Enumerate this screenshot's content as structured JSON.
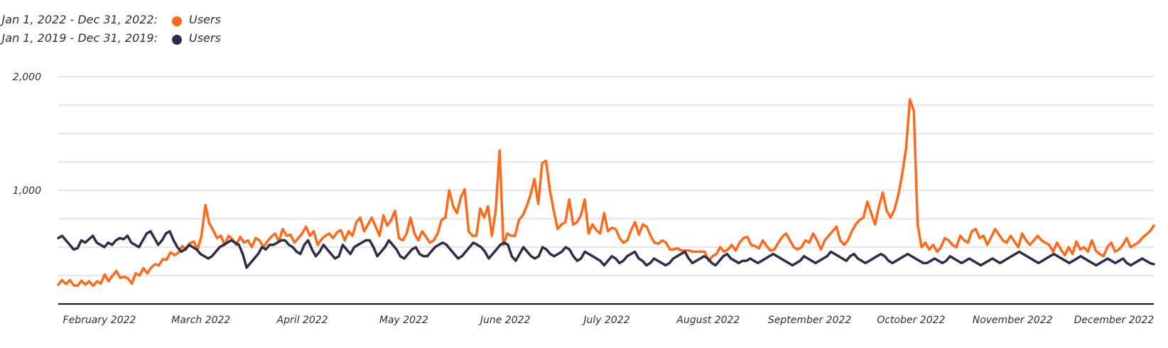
{
  "legend": {
    "items": [
      {
        "range": "Jan 1, 2022 - Dec 31, 2022:",
        "name": "Users",
        "color": "#ff6a1a"
      },
      {
        "range": "Jan 1, 2019 - Dec 31, 2019:",
        "name": "Users",
        "color": "#2b2d4b"
      }
    ]
  },
  "chart_data": {
    "type": "line",
    "grid": true,
    "legend_position": "top-left",
    "ylim": [
      0,
      2000
    ],
    "y_ticks": [
      {
        "value": 2000,
        "label": "2,000"
      },
      {
        "value": 1000,
        "label": "1,000"
      }
    ],
    "x_ticks": [
      "February 2022",
      "March 2022",
      "April 2022",
      "May 2022",
      "June 2022",
      "July 2022",
      "August 2022",
      "September 2022",
      "October 2022",
      "November 2022",
      "December 2022"
    ],
    "series": [
      {
        "name": "Users",
        "period": "Jan 1, 2022 - Dec 31, 2022",
        "color": "#ff6a1a",
        "values": [
          170,
          210,
          175,
          210,
          165,
          160,
          205,
          170,
          200,
          160,
          200,
          180,
          260,
          200,
          250,
          290,
          230,
          240,
          225,
          180,
          270,
          250,
          315,
          270,
          320,
          350,
          340,
          395,
          390,
          455,
          430,
          450,
          510,
          480,
          535,
          550,
          480,
          600,
          870,
          710,
          650,
          580,
          600,
          520,
          600,
          570,
          520,
          590,
          540,
          560,
          500,
          580,
          560,
          500,
          550,
          590,
          620,
          550,
          660,
          600,
          610,
          540,
          580,
          620,
          680,
          600,
          640,
          520,
          570,
          600,
          620,
          580,
          630,
          650,
          560,
          640,
          600,
          720,
          760,
          640,
          700,
          760,
          680,
          600,
          780,
          690,
          740,
          820,
          580,
          560,
          620,
          760,
          620,
          560,
          640,
          590,
          540,
          560,
          620,
          740,
          760,
          1000,
          860,
          800,
          940,
          1010,
          640,
          600,
          600,
          840,
          760,
          860,
          600,
          820,
          1350,
          520,
          620,
          600,
          600,
          740,
          780,
          860,
          960,
          1100,
          880,
          1240,
          1260,
          1000,
          820,
          660,
          700,
          720,
          920,
          700,
          720,
          780,
          920,
          620,
          700,
          650,
          620,
          800,
          640,
          670,
          660,
          580,
          540,
          560,
          650,
          720,
          610,
          700,
          680,
          600,
          540,
          530,
          560,
          540,
          480,
          480,
          490,
          470,
          470,
          470,
          460,
          460,
          460,
          460,
          380,
          420,
          440,
          500,
          460,
          480,
          520,
          470,
          540,
          580,
          590,
          520,
          510,
          490,
          560,
          510,
          470,
          480,
          540,
          590,
          620,
          560,
          500,
          480,
          500,
          560,
          540,
          620,
          560,
          480,
          560,
          600,
          640,
          680,
          560,
          520,
          560,
          640,
          700,
          740,
          760,
          900,
          800,
          700,
          860,
          980,
          820,
          760,
          830,
          960,
          1140,
          1370,
          1800,
          1700,
          700,
          500,
          540,
          480,
          520,
          460,
          500,
          580,
          560,
          520,
          500,
          600,
          560,
          540,
          640,
          660,
          580,
          600,
          520,
          590,
          660,
          610,
          560,
          540,
          600,
          550,
          500,
          620,
          560,
          520,
          560,
          600,
          560,
          540,
          520,
          460,
          540,
          480,
          430,
          500,
          440,
          550,
          480,
          500,
          460,
          560,
          470,
          440,
          420,
          500,
          540,
          460,
          480,
          520,
          580,
          500,
          520,
          540,
          580,
          610,
          640,
          690
        ]
      },
      {
        "name": "Users",
        "period": "Jan 1, 2019 - Dec 31, 2019",
        "color": "#2b2d4b",
        "values": [
          580,
          600,
          560,
          520,
          480,
          490,
          560,
          540,
          570,
          600,
          540,
          520,
          500,
          540,
          520,
          560,
          580,
          570,
          600,
          540,
          520,
          500,
          560,
          620,
          640,
          580,
          520,
          560,
          620,
          640,
          560,
          500,
          460,
          480,
          520,
          500,
          480,
          440,
          420,
          400,
          420,
          460,
          500,
          520,
          540,
          560,
          540,
          520,
          440,
          320,
          360,
          400,
          440,
          500,
          480,
          520,
          520,
          540,
          560,
          560,
          520,
          500,
          460,
          440,
          520,
          560,
          480,
          420,
          460,
          520,
          480,
          440,
          400,
          420,
          520,
          480,
          440,
          500,
          520,
          540,
          560,
          560,
          500,
          420,
          460,
          500,
          560,
          520,
          480,
          420,
          400,
          440,
          480,
          500,
          440,
          420,
          420,
          460,
          500,
          520,
          540,
          520,
          480,
          440,
          400,
          420,
          460,
          500,
          540,
          520,
          500,
          460,
          400,
          440,
          480,
          520,
          540,
          520,
          420,
          380,
          440,
          500,
          460,
          420,
          400,
          420,
          500,
          480,
          440,
          420,
          440,
          460,
          500,
          480,
          420,
          380,
          400,
          460,
          440,
          420,
          400,
          380,
          340,
          380,
          420,
          400,
          360,
          380,
          420,
          440,
          460,
          400,
          380,
          340,
          360,
          400,
          380,
          360,
          340,
          360,
          400,
          420,
          440,
          460,
          400,
          360,
          380,
          400,
          420,
          400,
          360,
          340,
          380,
          420,
          440,
          400,
          380,
          360,
          380,
          380,
          400,
          380,
          360,
          380,
          400,
          420,
          440,
          420,
          400,
          380,
          360,
          340,
          360,
          380,
          420,
          400,
          380,
          360,
          380,
          400,
          420,
          460,
          440,
          420,
          400,
          380,
          420,
          440,
          400,
          380,
          360,
          380,
          400,
          420,
          440,
          420,
          380,
          360,
          380,
          400,
          420,
          440,
          420,
          400,
          380,
          360,
          360,
          380,
          400,
          380,
          360,
          380,
          420,
          400,
          380,
          360,
          380,
          400,
          380,
          360,
          340,
          360,
          380,
          400,
          380,
          360,
          380,
          400,
          420,
          440,
          460,
          440,
          420,
          400,
          380,
          360,
          380,
          400,
          420,
          440,
          420,
          400,
          380,
          360,
          380,
          400,
          420,
          400,
          380,
          360,
          340,
          360,
          380,
          400,
          380,
          360,
          380,
          400,
          360,
          340,
          360,
          380,
          400,
          380,
          360,
          350
        ]
      }
    ]
  }
}
